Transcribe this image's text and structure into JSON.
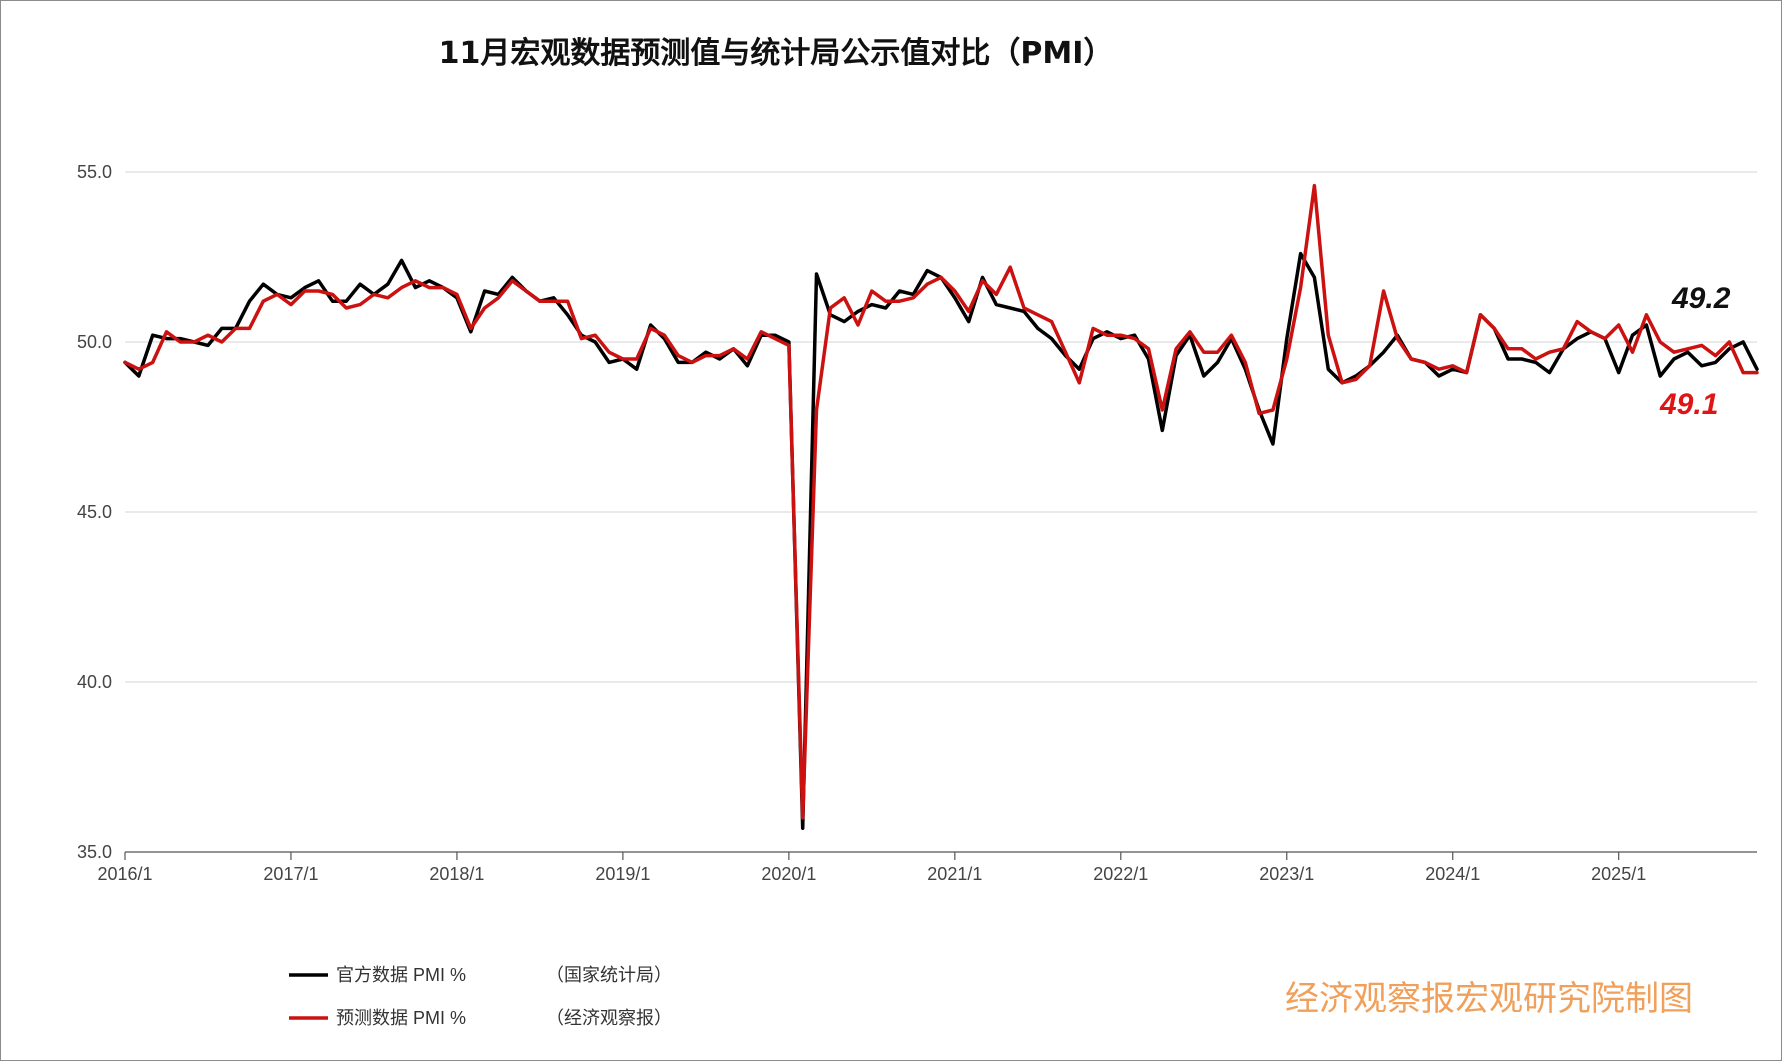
{
  "chart_data": {
    "type": "line",
    "title": "11月宏观数据预测值与统计局公示值对比（PMI）",
    "ylim": [
      35,
      56
    ],
    "yticks": [
      "55.0",
      "50.0",
      "45.0",
      "40.0",
      "35.0"
    ],
    "ytick_values": [
      55,
      50,
      45,
      40,
      35
    ],
    "xticks": [
      "2016/1",
      "2017/1",
      "2018/1",
      "2019/1",
      "2020/1",
      "2021/1",
      "2022/1",
      "2023/1",
      "2024/1",
      "2025/1"
    ],
    "grid": true,
    "legend_position": "bottom-left",
    "series": [
      {
        "name": "官方数据 PMI  %",
        "source": "（国家统计局）",
        "color": "#000000",
        "values": [
          49.4,
          49.0,
          50.2,
          50.1,
          50.1,
          50.0,
          49.9,
          50.4,
          50.4,
          51.2,
          51.7,
          51.4,
          51.3,
          51.6,
          51.8,
          51.2,
          51.2,
          51.7,
          51.4,
          51.7,
          52.4,
          51.6,
          51.8,
          51.6,
          51.3,
          50.3,
          51.5,
          51.4,
          51.9,
          51.5,
          51.2,
          51.3,
          50.8,
          50.2,
          50.0,
          49.4,
          49.5,
          49.2,
          50.5,
          50.1,
          49.4,
          49.4,
          49.7,
          49.5,
          49.8,
          49.3,
          50.2,
          50.2,
          50.0,
          35.7,
          52.0,
          50.8,
          50.6,
          50.9,
          51.1,
          51.0,
          51.5,
          51.4,
          52.1,
          51.9,
          51.3,
          50.6,
          51.9,
          51.1,
          51.0,
          50.9,
          50.4,
          50.1,
          49.6,
          49.2,
          50.1,
          50.3,
          50.1,
          50.2,
          49.5,
          47.4,
          49.6,
          50.2,
          49.0,
          49.4,
          50.1,
          49.2,
          48.0,
          47.0,
          50.1,
          52.6,
          51.9,
          49.2,
          48.8,
          49.0,
          49.3,
          49.7,
          50.2,
          49.5,
          49.4,
          49.0,
          49.2,
          49.1,
          50.8,
          50.4,
          49.5,
          49.5,
          49.4,
          49.1,
          49.8,
          50.1,
          50.3,
          50.1,
          49.1,
          50.2,
          50.5,
          49.0,
          49.5,
          49.7,
          49.3,
          49.4,
          49.8,
          50.0,
          49.2
        ]
      },
      {
        "name": "预测数据 PMI  %",
        "source": "（经济观察报）",
        "color": "#cc1111",
        "values": [
          49.4,
          49.2,
          49.4,
          50.3,
          50.0,
          50.0,
          50.2,
          50.0,
          50.4,
          50.4,
          51.2,
          51.4,
          51.1,
          51.5,
          51.5,
          51.4,
          51.0,
          51.1,
          51.4,
          51.3,
          51.6,
          51.8,
          51.6,
          51.6,
          51.4,
          50.4,
          51.0,
          51.3,
          51.8,
          51.5,
          51.2,
          51.2,
          51.2,
          50.1,
          50.2,
          49.7,
          49.5,
          49.5,
          50.4,
          50.2,
          49.6,
          49.4,
          49.6,
          49.6,
          49.8,
          49.5,
          50.3,
          50.1,
          49.9,
          36.0,
          48.0,
          51.0,
          51.3,
          50.5,
          51.5,
          51.2,
          51.2,
          51.3,
          51.7,
          51.9,
          51.5,
          50.9,
          51.8,
          51.4,
          52.2,
          51.0,
          50.8,
          50.6,
          49.7,
          48.8,
          50.4,
          50.2,
          50.2,
          50.1,
          49.8,
          48.0,
          49.8,
          50.3,
          49.7,
          49.7,
          50.2,
          49.4,
          47.9,
          48.0,
          49.5,
          51.6,
          54.6,
          50.2,
          48.8,
          48.9,
          49.3,
          51.5,
          50.1,
          49.5,
          49.4,
          49.2,
          49.3,
          49.1,
          50.8,
          50.4,
          49.8,
          49.8,
          49.5,
          49.7,
          49.8,
          50.6,
          50.3,
          50.1,
          50.5,
          49.7,
          50.8,
          50.0,
          49.7,
          49.8,
          49.9,
          49.6,
          50.0,
          49.1,
          49.1
        ]
      }
    ],
    "annotations": [
      {
        "text": "49.2",
        "series": "官方数据 PMI  %"
      },
      {
        "text": "49.1",
        "series": "预测数据 PMI  %"
      }
    ]
  },
  "credit": "经济观察报宏观研究院制图"
}
